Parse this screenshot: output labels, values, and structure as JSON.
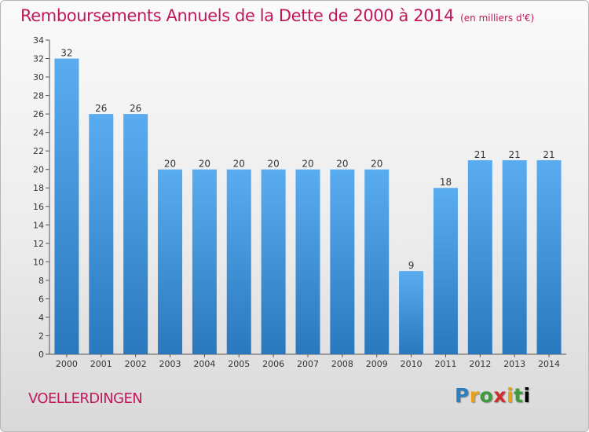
{
  "chart_data": {
    "type": "bar",
    "title": "Remboursements Annuels de la Dette de 2000 à 2014",
    "subtitle": "(en milliers d'€)",
    "categories": [
      "2000",
      "2001",
      "2002",
      "2003",
      "2004",
      "2005",
      "2006",
      "2007",
      "2008",
      "2009",
      "2010",
      "2011",
      "2012",
      "2013",
      "2014"
    ],
    "values": [
      32,
      26,
      26,
      20,
      20,
      20,
      20,
      20,
      20,
      20,
      9,
      18,
      21,
      21,
      21
    ],
    "ylim": [
      0,
      34
    ],
    "yticks": [
      0,
      2,
      4,
      6,
      8,
      10,
      12,
      14,
      16,
      18,
      20,
      22,
      24,
      26,
      28,
      30,
      32,
      34
    ],
    "xlabel": "",
    "ylabel": "",
    "grid": false,
    "bar_color": "#3d8fd6"
  },
  "footer": {
    "commune": "VOELLERDINGEN",
    "logo_letters": [
      "P",
      "r",
      "o",
      "x",
      "i",
      "t",
      "i"
    ]
  },
  "colors": {
    "title": "#c2185b",
    "bar_light": "#5aacf0",
    "bar_dark": "#2a78bd"
  }
}
